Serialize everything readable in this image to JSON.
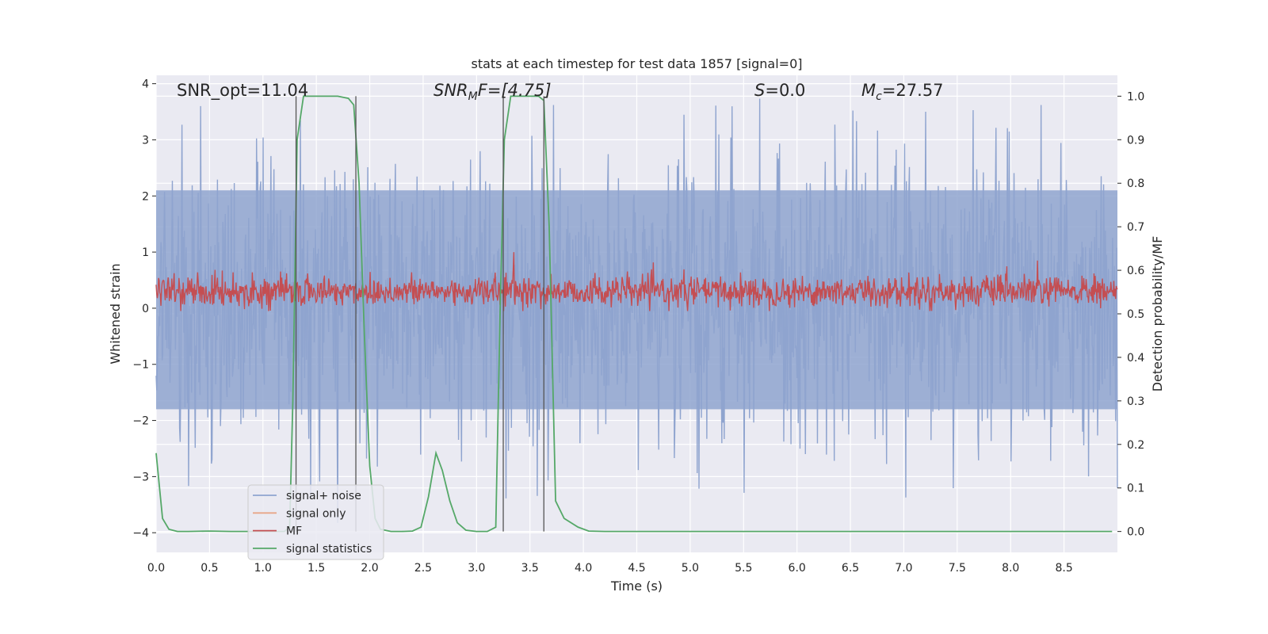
{
  "chart_data": {
    "type": "line",
    "title": "stats at each timestep for test data 1857 [signal=0]",
    "xlabel": "Time (s)",
    "ylabel": "Whitened strain",
    "y2label": "Detection probability/MF",
    "xlim": [
      0.0,
      9.0
    ],
    "ylim": [
      -4.35,
      4.15
    ],
    "y2lim": [
      -0.048,
      1.048
    ],
    "x_ticks": [
      0.0,
      0.5,
      1.0,
      1.5,
      2.0,
      2.5,
      3.0,
      3.5,
      4.0,
      4.5,
      5.0,
      5.5,
      6.0,
      6.5,
      7.0,
      7.5,
      8.0,
      8.5
    ],
    "y_ticks": [
      -4,
      -3,
      -2,
      -1,
      0,
      1,
      2,
      3,
      4
    ],
    "y2_ticks": [
      0.0,
      0.1,
      0.2,
      0.3,
      0.4,
      0.5,
      0.6,
      0.7,
      0.8,
      0.9,
      1.0
    ],
    "grid": true,
    "legend_position": "lower-left",
    "annotations": {
      "snr_opt": "SNR_opt=11.04",
      "snr_mf_name": "SNR",
      "snr_mf_sub": "M",
      "snr_mf_rest": "F=[4.75]",
      "s_name": "S",
      "s_rest": "=0.0",
      "mc_name": "M",
      "mc_sub": "c",
      "mc_rest": "=27.57"
    },
    "series": [
      {
        "name": "signal+ noise",
        "color": "#8fa4cf",
        "axis": "left",
        "noise": {
          "duration": 9.0,
          "samples": 1600,
          "typical_range": [
            -1.8,
            2.1
          ],
          "max": 3.9,
          "min": -4.0
        }
      },
      {
        "name": "signal only",
        "color": "#e8a687",
        "axis": "left",
        "values": []
      },
      {
        "name": "MF",
        "color": "#c44e52",
        "axis": "left",
        "noise": {
          "duration": 9.0,
          "samples": 1600,
          "typical_range": [
            0.0,
            0.6
          ],
          "peaks": [
            [
              3.35,
              1.0
            ],
            [
              8.25,
              0.85
            ]
          ]
        }
      },
      {
        "name": "signal statistics",
        "color": "#55a868",
        "axis": "right",
        "x": [
          0.0,
          0.06,
          0.12,
          0.2,
          0.3,
          0.5,
          0.7,
          0.9,
          1.1,
          1.2,
          1.25,
          1.28,
          1.32,
          1.38,
          1.45,
          1.55,
          1.7,
          1.8,
          1.85,
          1.9,
          1.95,
          2.0,
          2.05,
          2.1,
          2.2,
          2.3,
          2.4,
          2.48,
          2.55,
          2.62,
          2.68,
          2.75,
          2.82,
          2.9,
          3.0,
          3.1,
          3.18,
          3.22,
          3.26,
          3.32,
          3.4,
          3.5,
          3.58,
          3.63,
          3.68,
          3.74,
          3.82,
          3.95,
          4.05,
          4.2,
          4.5,
          5.0,
          6.0,
          7.0,
          8.0,
          8.95
        ],
        "y": [
          0.18,
          0.03,
          0.005,
          0.0,
          0.0,
          0.001,
          0.0,
          0.0,
          0.0,
          0.0,
          0.01,
          0.3,
          0.9,
          1.0,
          1.0,
          1.0,
          1.0,
          0.995,
          0.98,
          0.8,
          0.45,
          0.15,
          0.03,
          0.005,
          0.0,
          0.0,
          0.001,
          0.01,
          0.08,
          0.18,
          0.14,
          0.07,
          0.02,
          0.003,
          0.0,
          0.0,
          0.01,
          0.5,
          0.9,
          1.0,
          1.0,
          1.0,
          1.0,
          0.99,
          0.7,
          0.07,
          0.03,
          0.01,
          0.001,
          0.0,
          0.0,
          0.0,
          0.0,
          0.0,
          0.0,
          0.0
        ]
      }
    ],
    "vertical_lines": [
      1.31,
      1.87,
      3.25,
      3.63
    ]
  }
}
